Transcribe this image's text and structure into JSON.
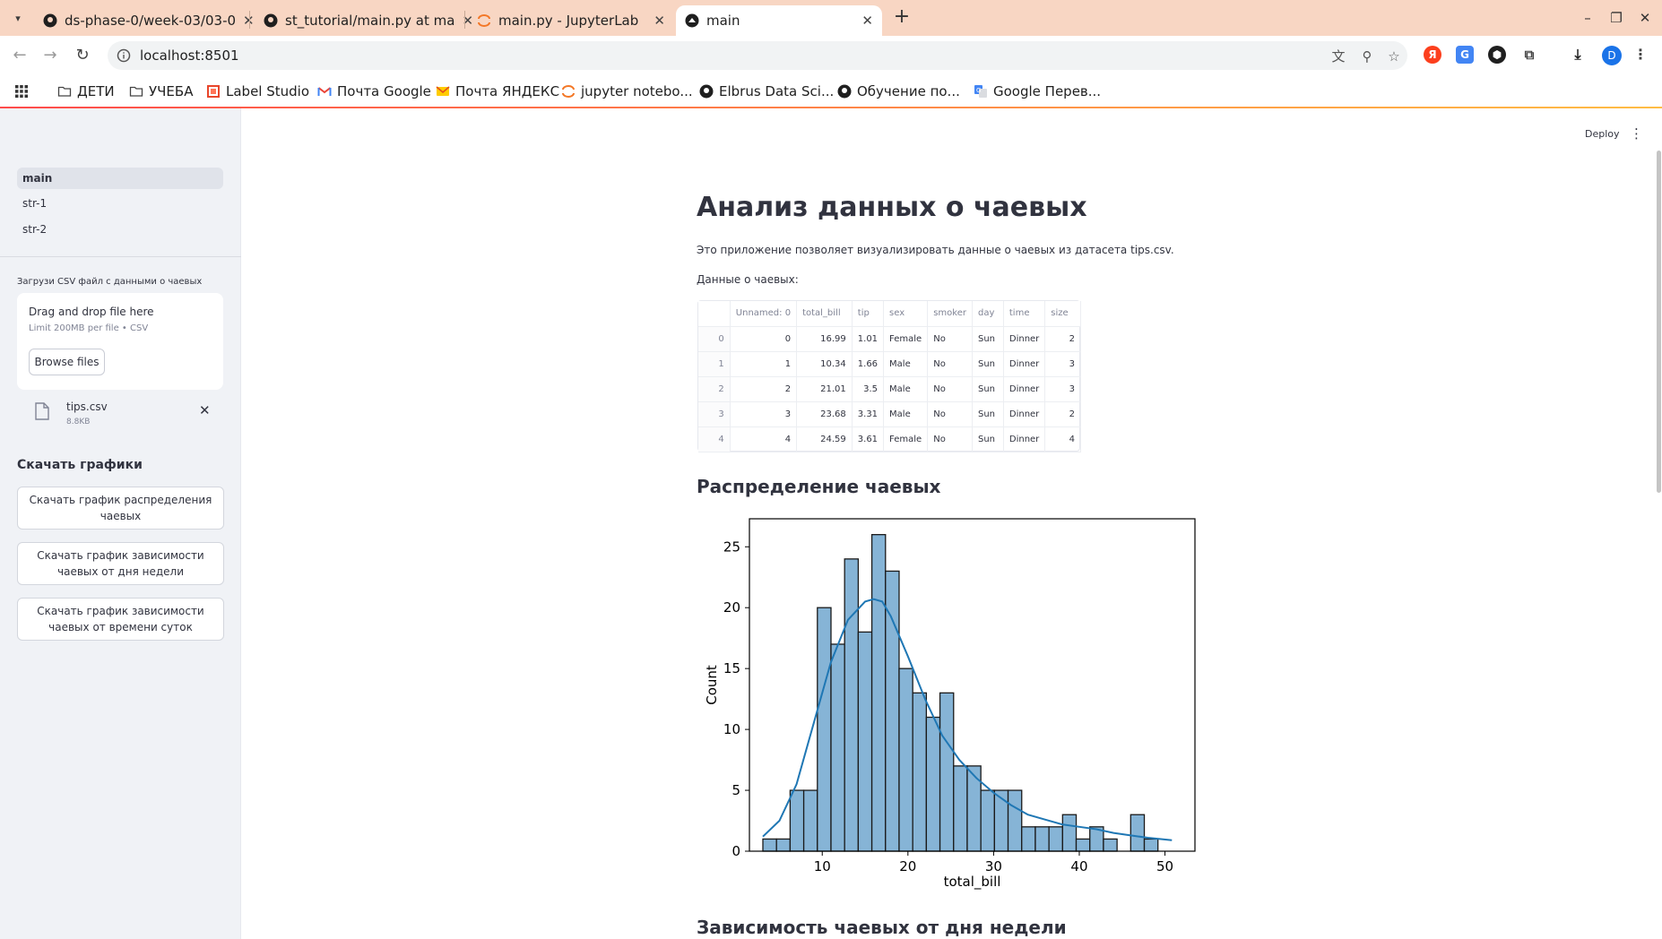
{
  "browser": {
    "tabs": [
      {
        "title": "ds-phase-0/week-03/03-0"
      },
      {
        "title": "st_tutorial/main.py at ma"
      },
      {
        "title": "main.py - JupyterLab"
      },
      {
        "title": "main"
      }
    ],
    "url": "localhost:8501",
    "profile_initial": "D",
    "bookmarks": [
      {
        "label": "ДЕТИ",
        "icon": "folder-icon"
      },
      {
        "label": "УЧЕБА",
        "icon": "folder-icon"
      },
      {
        "label": "Label Studio",
        "icon": "label-studio-icon"
      },
      {
        "label": "Почта Google",
        "icon": "gmail-icon"
      },
      {
        "label": "Почта ЯНДЕКС",
        "icon": "yandex-mail-icon"
      },
      {
        "label": "jupyter notebo...",
        "icon": "jupyter-icon"
      },
      {
        "label": "Elbrus Data Sci...",
        "icon": "github-icon"
      },
      {
        "label": "Обучение по...",
        "icon": "github-icon"
      },
      {
        "label": "Google Перев...",
        "icon": "google-translate-icon"
      }
    ]
  },
  "sidebar": {
    "nav": [
      {
        "label": "main"
      },
      {
        "label": "str-1"
      },
      {
        "label": "str-2"
      }
    ],
    "upload_label": "Загрузи CSV файл с данными о чаевых",
    "dropzone_title": "Drag and drop file here",
    "dropzone_sub": "Limit 200MB per file • CSV",
    "browse_label": "Browse files",
    "file_name": "tips.csv",
    "file_size": "8.8KB",
    "downloads_heading": "Скачать графики",
    "buttons": [
      {
        "label": "Скачать график распределения чаевых"
      },
      {
        "label": "Скачать график зависимости чаевых от дня недели"
      },
      {
        "label": "Скачать график зависимости чаевых от времени суток"
      }
    ]
  },
  "header": {
    "deploy_label": "Deploy"
  },
  "main": {
    "title": "Анализ данных о чаевых",
    "intro": "Это приложение позволяет визуализировать данные о чаевых из датасета tips.csv.",
    "data_caption": "Данные о чаевых:",
    "table": {
      "columns": [
        "",
        "Unnamed: 0",
        "total_bill",
        "tip",
        "sex",
        "smoker",
        "day",
        "time",
        "size"
      ],
      "rows": [
        [
          "0",
          "0",
          "16.99",
          "1.01",
          "Female",
          "No",
          "Sun",
          "Dinner",
          "2"
        ],
        [
          "1",
          "1",
          "10.34",
          "1.66",
          "Male",
          "No",
          "Sun",
          "Dinner",
          "3"
        ],
        [
          "2",
          "2",
          "21.01",
          "3.5",
          "Male",
          "No",
          "Sun",
          "Dinner",
          "3"
        ],
        [
          "3",
          "3",
          "23.68",
          "3.31",
          "Male",
          "No",
          "Sun",
          "Dinner",
          "2"
        ],
        [
          "4",
          "4",
          "24.59",
          "3.61",
          "Female",
          "No",
          "Sun",
          "Dinner",
          "4"
        ]
      ]
    },
    "section1_title": "Распределение чаевых",
    "section2_title": "Зависимость чаевых от дня недели"
  },
  "chart_data": {
    "type": "bar",
    "xlabel": "total_bill",
    "ylabel": "Count",
    "xlim": [
      1.5,
      53.5
    ],
    "ylim": [
      0,
      27.3
    ],
    "xticks": [
      10,
      20,
      30,
      40,
      50
    ],
    "yticks": [
      0,
      5,
      10,
      15,
      20,
      25
    ],
    "bin_start": 3.07,
    "bin_width": 1.59,
    "values": [
      1,
      1,
      5,
      5,
      20,
      17,
      24,
      18,
      26,
      23,
      15,
      13,
      11,
      13,
      7,
      7,
      5,
      5,
      5,
      2,
      2,
      2,
      3,
      1,
      2,
      1,
      0,
      3,
      1
    ],
    "bar_color": "#86b4d6",
    "kde_color": "#1f77b4",
    "kde": {
      "x": [
        3.07,
        5,
        7,
        9,
        11,
        13,
        15,
        16,
        17,
        18,
        20,
        22,
        24,
        26,
        28,
        30,
        32,
        34,
        36,
        38,
        40,
        42,
        44,
        46,
        48,
        50.81
      ],
      "y": [
        1.2,
        2.5,
        5.5,
        10.5,
        15.5,
        19.0,
        20.5,
        20.7,
        20.5,
        19.3,
        16.0,
        12.5,
        9.5,
        7.5,
        6.0,
        4.8,
        3.8,
        3.0,
        2.6,
        2.2,
        2.0,
        1.8,
        1.5,
        1.3,
        1.1,
        0.9
      ]
    }
  }
}
